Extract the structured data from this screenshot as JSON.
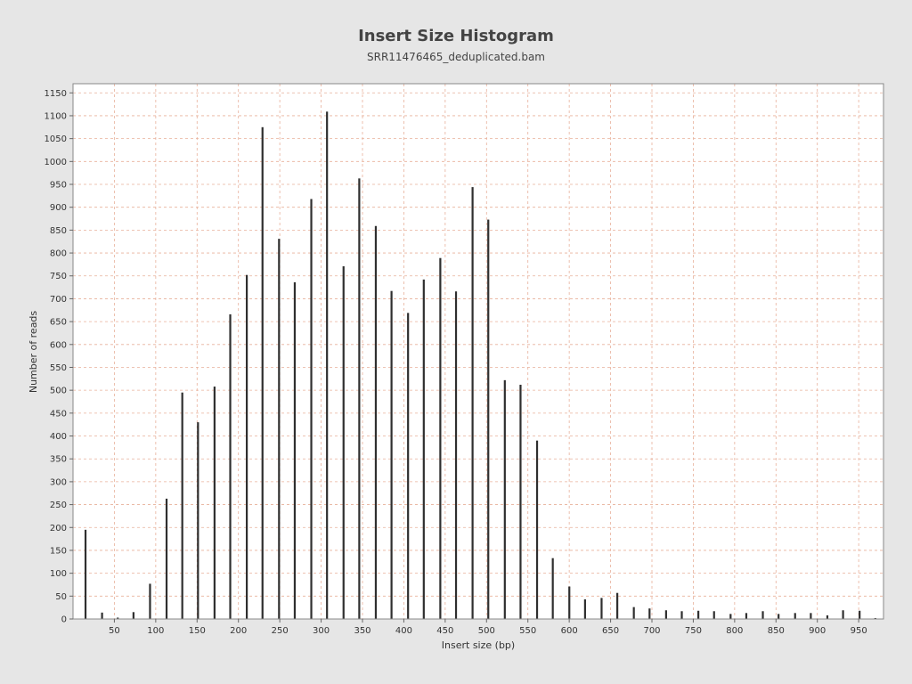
{
  "chart_data": {
    "type": "bar",
    "title": "Insert Size Histogram",
    "subtitle": "SRR11476465_deduplicated.bam",
    "xlabel": "Insert size (bp)",
    "ylabel": "Number of reads",
    "xlim": [
      0,
      980
    ],
    "ylim": [
      0,
      1170
    ],
    "xticks": [
      50,
      100,
      150,
      200,
      250,
      300,
      350,
      400,
      450,
      500,
      550,
      600,
      650,
      700,
      750,
      800,
      850,
      900,
      950
    ],
    "yticks": [
      0,
      50,
      100,
      150,
      200,
      250,
      300,
      350,
      400,
      450,
      500,
      550,
      600,
      650,
      700,
      750,
      800,
      850,
      900,
      950,
      1000,
      1050,
      1100,
      1150
    ],
    "grid": true,
    "x": [
      15,
      35,
      54,
      73,
      93,
      113,
      132,
      151,
      171,
      190,
      210,
      229,
      249,
      268,
      288,
      307,
      327,
      346,
      366,
      385,
      405,
      424,
      444,
      463,
      483,
      502,
      522,
      541,
      561,
      580,
      600,
      619,
      639,
      658,
      678,
      697,
      717,
      736,
      756,
      775,
      795,
      814,
      834,
      853,
      873,
      892,
      912,
      931,
      951,
      970
    ],
    "values": [
      195,
      14,
      3,
      15,
      77,
      263,
      495,
      430,
      508,
      666,
      752,
      1075,
      831,
      736,
      918,
      1109,
      771,
      963,
      859,
      717,
      669,
      742,
      789,
      716,
      944,
      873,
      522,
      512,
      390,
      133,
      71,
      43,
      46,
      57,
      26,
      23,
      19,
      17,
      18,
      17,
      11,
      13,
      17,
      11,
      13,
      13,
      8,
      19,
      18,
      2
    ],
    "bar_color": "#2f2f2f",
    "grid_color": "#e8b09a",
    "plot_bg": "#ffffff"
  }
}
